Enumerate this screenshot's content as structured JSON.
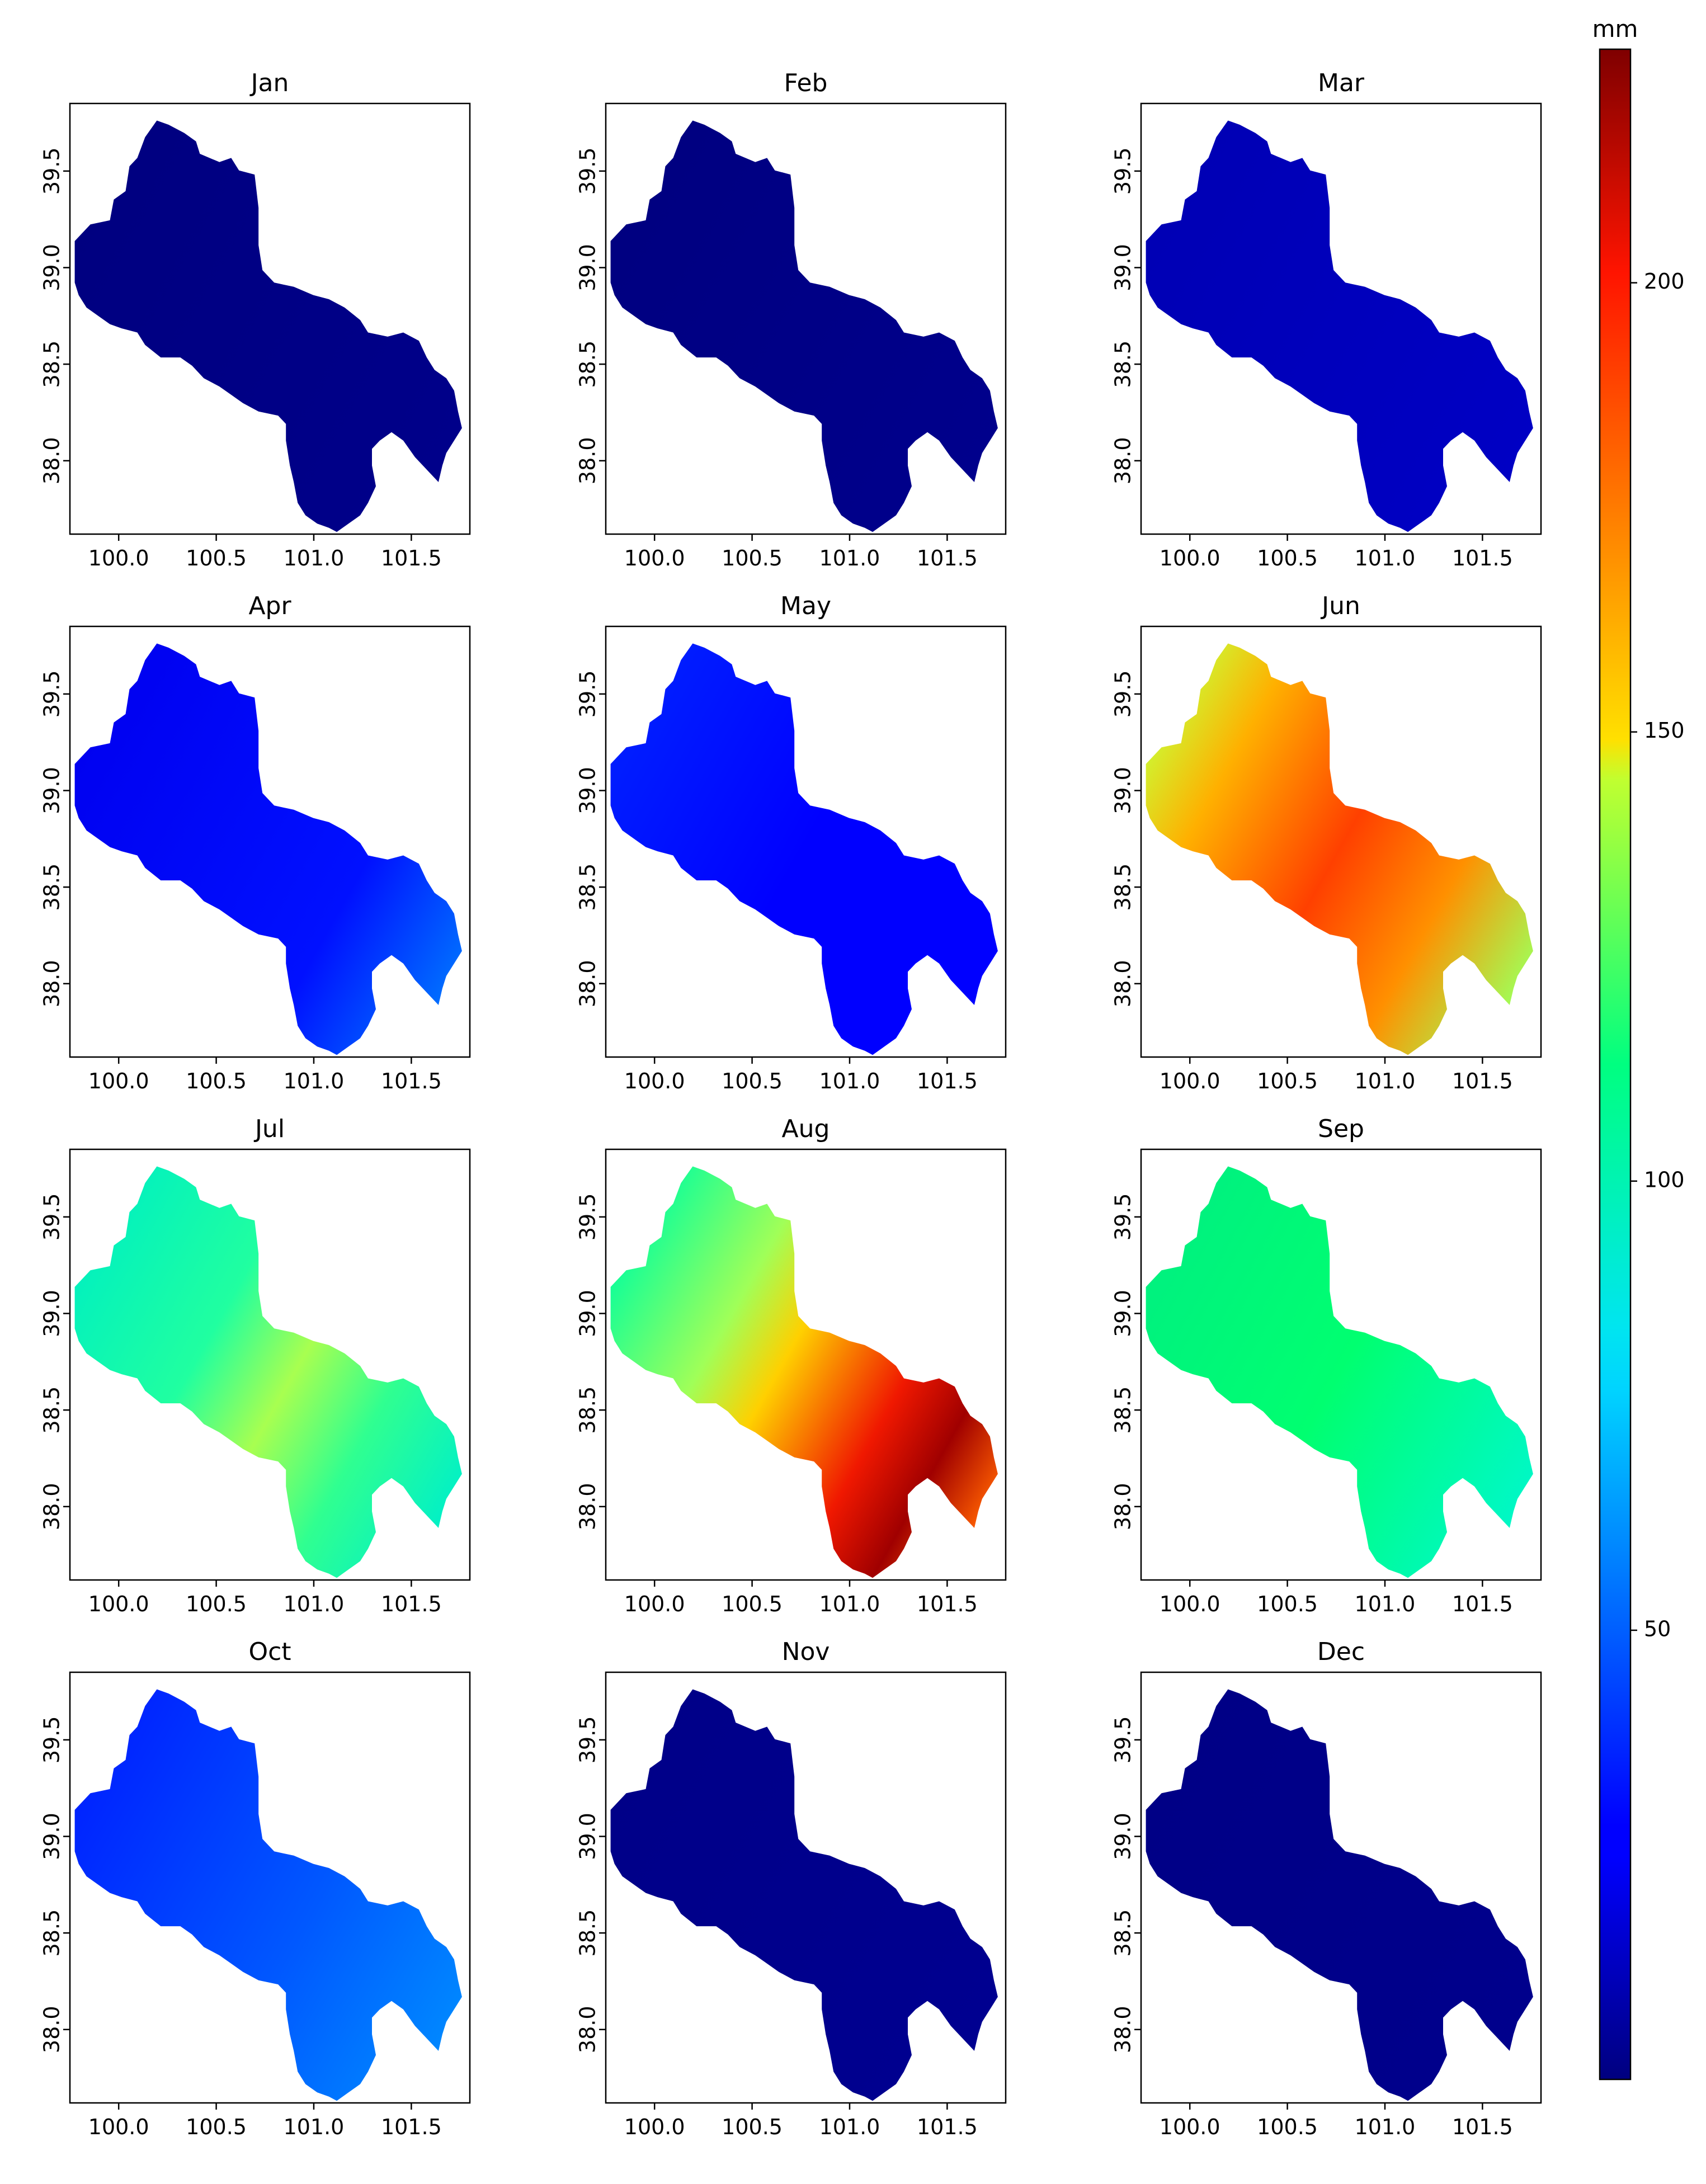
{
  "figure": {
    "panel_titles": [
      "Jan",
      "Feb",
      "Mar",
      "Apr",
      "May",
      "Jun",
      "Jul",
      "Aug",
      "Sep",
      "Oct",
      "Nov",
      "Dec"
    ],
    "x_ticks": [
      "100.0",
      "100.5",
      "101.0",
      "101.5"
    ],
    "y_ticks": [
      "38.0",
      "38.5",
      "39.0",
      "39.5"
    ],
    "x_tick_values": [
      100.0,
      100.5,
      101.0,
      101.5
    ],
    "y_tick_values": [
      38.0,
      38.5,
      39.0,
      39.5
    ],
    "x_range": [
      99.75,
      101.8
    ],
    "y_range": [
      37.62,
      39.85
    ],
    "colorbar": {
      "unit": "mm",
      "ticks": [
        "50",
        "100",
        "150",
        "200"
      ],
      "tick_values": [
        50,
        100,
        150,
        200
      ],
      "range": [
        0,
        226
      ],
      "colormap": "jet"
    }
  },
  "panel_fills": {
    "Jan": [
      {
        "offset": 0,
        "color": "#000080"
      },
      {
        "offset": 1,
        "color": "#00008a"
      }
    ],
    "Feb": [
      {
        "offset": 0,
        "color": "#000080"
      },
      {
        "offset": 1,
        "color": "#00008c"
      }
    ],
    "Mar": [
      {
        "offset": 0,
        "color": "#0000b4"
      },
      {
        "offset": 1,
        "color": "#0000c4"
      }
    ],
    "Apr": [
      {
        "offset": 0,
        "color": "#0000f0"
      },
      {
        "offset": 0.7,
        "color": "#0010ff"
      },
      {
        "offset": 1,
        "color": "#0070ff"
      }
    ],
    "May": [
      {
        "offset": 0,
        "color": "#0020ff"
      },
      {
        "offset": 0.5,
        "color": "#0000ff"
      },
      {
        "offset": 1,
        "color": "#0000ff"
      }
    ],
    "Jun": [
      {
        "offset": 0,
        "color": "#c8ff38"
      },
      {
        "offset": 0.2,
        "color": "#ffb000"
      },
      {
        "offset": 0.5,
        "color": "#ff4000"
      },
      {
        "offset": 0.75,
        "color": "#ff9000"
      },
      {
        "offset": 1,
        "color": "#a0ff58"
      }
    ],
    "Jul": [
      {
        "offset": 0,
        "color": "#00f0c0"
      },
      {
        "offset": 0.35,
        "color": "#20ffa0"
      },
      {
        "offset": 0.55,
        "color": "#a8ff50"
      },
      {
        "offset": 0.75,
        "color": "#30ff90"
      },
      {
        "offset": 1,
        "color": "#00f0c8"
      }
    ],
    "Aug": [
      {
        "offset": 0,
        "color": "#00ffa0"
      },
      {
        "offset": 0.3,
        "color": "#a0ff58"
      },
      {
        "offset": 0.45,
        "color": "#ffd000"
      },
      {
        "offset": 0.7,
        "color": "#f01800"
      },
      {
        "offset": 0.85,
        "color": "#a00000"
      },
      {
        "offset": 1,
        "color": "#ff6000"
      }
    ],
    "Sep": [
      {
        "offset": 0,
        "color": "#00f080"
      },
      {
        "offset": 0.5,
        "color": "#00ff70"
      },
      {
        "offset": 1,
        "color": "#00f8c8"
      }
    ],
    "Oct": [
      {
        "offset": 0,
        "color": "#0020ff"
      },
      {
        "offset": 0.6,
        "color": "#0058ff"
      },
      {
        "offset": 1,
        "color": "#0088ff"
      }
    ],
    "Nov": [
      {
        "offset": 0,
        "color": "#000088"
      },
      {
        "offset": 1,
        "color": "#000090"
      }
    ],
    "Dec": [
      {
        "offset": 0,
        "color": "#000086"
      },
      {
        "offset": 1,
        "color": "#00008c"
      }
    ]
  }
}
